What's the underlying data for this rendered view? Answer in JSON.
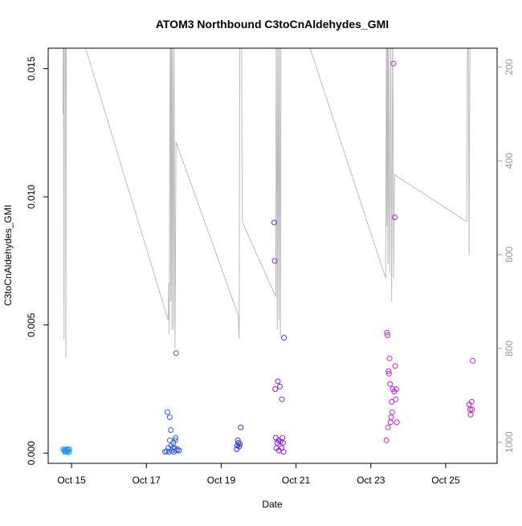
{
  "chart_data": {
    "type": "scatter",
    "title": "ATOM3 Northbound C3toCnAldehydes_GMI",
    "xlabel": "Date",
    "ylabel": "C3toCnAldehydes_GMI",
    "xlim": [
      "2016-10-14T09:00",
      "2016-10-26T09:00"
    ],
    "ylim": [
      -0.0004,
      0.0158
    ],
    "x_ticks": [
      {
        "date": "2016-10-15",
        "label": "Oct 15"
      },
      {
        "date": "2016-10-17",
        "label": "Oct 17"
      },
      {
        "date": "2016-10-19",
        "label": "Oct 19"
      },
      {
        "date": "2016-10-21",
        "label": "Oct 21"
      },
      {
        "date": "2016-10-23",
        "label": "Oct 23"
      },
      {
        "date": "2016-10-25",
        "label": "Oct 25"
      }
    ],
    "y_ticks": [
      {
        "value": 0.0,
        "label": "0.000"
      },
      {
        "value": 0.005,
        "label": "0.005"
      },
      {
        "value": 0.01,
        "label": "0.010"
      },
      {
        "value": 0.015,
        "label": "0.015"
      }
    ],
    "y2": {
      "reversed": true,
      "lim": [
        1045,
        160
      ],
      "ticks": [
        {
          "value": 200,
          "label": "200"
        },
        {
          "value": 400,
          "label": "400"
        },
        {
          "value": 600,
          "label": "600"
        },
        {
          "value": 800,
          "label": "800"
        },
        {
          "value": 1000,
          "label": "1000"
        }
      ],
      "color": "#999999"
    },
    "grid": false,
    "legend": "none",
    "series": [
      {
        "color": "#1e9bf0",
        "points": [
          [
            "2016-10-14T18:40",
            0.00015
          ],
          [
            "2016-10-14T19:10",
            0.0001
          ],
          [
            "2016-10-14T19:40",
            5e-05
          ],
          [
            "2016-10-14T20:00",
            0.00012
          ],
          [
            "2016-10-14T20:20",
            0.0001
          ],
          [
            "2016-10-14T20:40",
            8e-05
          ],
          [
            "2016-10-14T21:00",
            0.00015
          ],
          [
            "2016-10-14T21:20",
            5e-05
          ],
          [
            "2016-10-14T21:40",
            0.00012
          ],
          [
            "2016-10-14T22:00",
            0.0001
          ],
          [
            "2016-10-14T22:20",
            3e-05
          ],
          [
            "2016-10-14T22:40",
            0.00015
          ]
        ]
      },
      {
        "color": "#2a5ef0",
        "points": [
          [
            "2016-10-17T12:00",
            5e-05
          ],
          [
            "2016-10-17T13:00",
            8e-05
          ],
          [
            "2016-10-17T13:30",
            0.0016
          ],
          [
            "2016-10-17T14:00",
            0.0002
          ],
          [
            "2016-10-17T14:30",
            5e-05
          ],
          [
            "2016-10-17T15:00",
            0.0014
          ],
          [
            "2016-10-17T15:00",
            0.0005
          ],
          [
            "2016-10-17T15:40",
            0.0009
          ],
          [
            "2016-10-17T16:00",
            0.0003
          ],
          [
            "2016-10-17T16:20",
            0.0001
          ],
          [
            "2016-10-17T17:00",
            0.0002
          ],
          [
            "2016-10-17T17:20",
            0.0004
          ],
          [
            "2016-10-17T17:40",
            5e-05
          ],
          [
            "2016-10-17T18:00",
            0.0002
          ],
          [
            "2016-10-17T18:30",
            0.0005
          ],
          [
            "2016-10-17T18:40",
            0.0006
          ],
          [
            "2016-10-17T19:00",
            0.0039
          ],
          [
            "2016-10-17T19:30",
            0.0001
          ],
          [
            "2016-10-17T20:00",
            0.00015
          ],
          [
            "2016-10-17T21:00",
            0.0001
          ]
        ]
      },
      {
        "color": "#3030e0",
        "points": [
          [
            "2016-10-19T10:00",
            0.00015
          ],
          [
            "2016-10-19T10:20",
            0.0003
          ],
          [
            "2016-10-19T10:40",
            0.0005
          ],
          [
            "2016-10-19T11:00",
            0.0004
          ],
          [
            "2016-10-19T11:30",
            0.00025
          ],
          [
            "2016-10-19T12:00",
            0.00035
          ],
          [
            "2016-10-19T12:30",
            0.001
          ]
        ]
      },
      {
        "color": "#8a1fe0",
        "points": [
          [
            "2016-10-20T10:00",
            0.009
          ],
          [
            "2016-10-20T10:20",
            0.0075
          ],
          [
            "2016-10-20T10:40",
            0.0025
          ],
          [
            "2016-10-20T11:00",
            0.0006
          ],
          [
            "2016-10-20T11:20",
            0.0002
          ],
          [
            "2016-10-20T12:00",
            0.0004
          ],
          [
            "2016-10-20T12:20",
            0.0028
          ],
          [
            "2016-10-20T12:40",
            0.0005
          ],
          [
            "2016-10-20T13:00",
            0.0001
          ],
          [
            "2016-10-20T13:40",
            0.0026
          ],
          [
            "2016-10-20T14:00",
            0.00045
          ],
          [
            "2016-10-20T14:40",
            0.0002
          ],
          [
            "2016-10-20T15:00",
            0.0021
          ],
          [
            "2016-10-20T15:20",
            0.0006
          ],
          [
            "2016-10-20T15:40",
            0.0004
          ],
          [
            "2016-10-20T16:00",
            5e-05
          ],
          [
            "2016-10-20T16:20",
            0.0045
          ]
        ]
      },
      {
        "color": "#c81ee6",
        "points": [
          [
            "2016-10-23T10:00",
            0.0005
          ],
          [
            "2016-10-23T10:20",
            0.0047
          ],
          [
            "2016-10-23T10:40",
            0.0046
          ],
          [
            "2016-10-23T11:00",
            0.001
          ],
          [
            "2016-10-23T11:20",
            0.0032
          ],
          [
            "2016-10-23T11:40",
            0.0031
          ],
          [
            "2016-10-23T12:00",
            0.0037
          ],
          [
            "2016-10-23T12:20",
            0.0027
          ],
          [
            "2016-10-23T12:40",
            0.0012
          ],
          [
            "2016-10-23T13:00",
            0.0014
          ],
          [
            "2016-10-23T13:20",
            0.002
          ],
          [
            "2016-10-23T13:40",
            0.0016
          ],
          [
            "2016-10-23T14:00",
            0.0025
          ],
          [
            "2016-10-23T14:30",
            0.0152
          ],
          [
            "2016-10-23T15:00",
            0.0024
          ],
          [
            "2016-10-23T15:20",
            0.0092
          ],
          [
            "2016-10-23T15:40",
            0.0034
          ],
          [
            "2016-10-23T16:00",
            0.0021
          ],
          [
            "2016-10-23T16:20",
            0.0025
          ],
          [
            "2016-10-23T16:40",
            0.0012
          ]
        ]
      },
      {
        "color": "#cc1ecc",
        "points": [
          [
            "2016-10-25T15:00",
            0.0019
          ],
          [
            "2016-10-25T15:40",
            0.0017
          ],
          [
            "2016-10-25T16:00",
            0.0015
          ],
          [
            "2016-10-25T16:40",
            0.002
          ],
          [
            "2016-10-25T17:00",
            0.0017
          ],
          [
            "2016-10-25T17:20",
            0.0036
          ]
        ]
      }
    ],
    "pressure_line": {
      "color": "#bbbbbb",
      "axis": "y2",
      "points": [
        [
          "2016-10-14T18:30",
          300
        ],
        [
          "2016-10-14T18:40",
          100
        ],
        [
          "2016-10-14T18:50",
          220
        ],
        [
          "2016-10-14T19:00",
          520
        ],
        [
          "2016-10-14T19:10",
          780
        ],
        [
          "2016-10-14T19:20",
          100
        ],
        [
          "2016-10-14T19:30",
          100
        ],
        [
          "2016-10-14T20:00",
          100
        ],
        [
          "2016-10-14T20:20",
          820
        ],
        [
          "2016-10-14T20:40",
          100
        ],
        [
          "2016-10-15T09:00",
          160
        ],
        [
          "2016-10-17T14:00",
          740
        ],
        [
          "2016-10-17T14:20",
          660
        ],
        [
          "2016-10-17T14:40",
          770
        ],
        [
          "2016-10-17T15:00",
          360
        ],
        [
          "2016-10-17T15:20",
          100
        ],
        [
          "2016-10-17T15:40",
          700
        ],
        [
          "2016-10-17T16:00",
          100
        ],
        [
          "2016-10-17T16:20",
          760
        ],
        [
          "2016-10-17T16:40",
          100
        ],
        [
          "2016-10-17T17:20",
          760
        ],
        [
          "2016-10-17T17:40",
          100
        ],
        [
          "2016-10-17T18:20",
          800
        ],
        [
          "2016-10-17T19:00",
          360
        ],
        [
          "2016-10-19T11:00",
          730
        ],
        [
          "2016-10-19T11:30",
          780
        ],
        [
          "2016-10-19T12:00",
          100
        ],
        [
          "2016-10-19T13:00",
          100
        ],
        [
          "2016-10-19T13:30",
          530
        ],
        [
          "2016-10-20T11:00",
          690
        ],
        [
          "2016-10-20T11:20",
          100
        ],
        [
          "2016-10-20T12:00",
          760
        ],
        [
          "2016-10-20T12:20",
          100
        ],
        [
          "2016-10-20T13:00",
          740
        ],
        [
          "2016-10-20T13:20",
          100
        ],
        [
          "2016-10-20T14:00",
          780
        ],
        [
          "2016-10-20T14:20",
          100
        ],
        [
          "2016-10-20T15:00",
          100
        ],
        [
          "2016-10-21T09:00",
          160
        ],
        [
          "2016-10-23T09:30",
          650
        ],
        [
          "2016-10-23T10:00",
          100
        ],
        [
          "2016-10-23T10:20",
          540
        ],
        [
          "2016-10-23T10:40",
          100
        ],
        [
          "2016-10-23T11:00",
          620
        ],
        [
          "2016-10-23T11:20",
          100
        ],
        [
          "2016-10-23T12:00",
          640
        ],
        [
          "2016-10-23T12:20",
          480
        ],
        [
          "2016-10-23T12:40",
          100
        ],
        [
          "2016-10-23T13:20",
          700
        ],
        [
          "2016-10-23T13:40",
          430
        ],
        [
          "2016-10-23T14:00",
          100
        ],
        [
          "2016-10-23T14:40",
          650
        ],
        [
          "2016-10-23T15:00",
          480
        ],
        [
          "2016-10-23T15:20",
          430
        ],
        [
          "2016-10-25T13:30",
          530
        ],
        [
          "2016-10-25T14:00",
          100
        ],
        [
          "2016-10-25T14:30",
          100
        ],
        [
          "2016-10-25T15:00",
          600
        ],
        [
          "2016-10-25T15:20",
          340
        ],
        [
          "2016-10-25T15:40",
          100
        ]
      ]
    }
  }
}
